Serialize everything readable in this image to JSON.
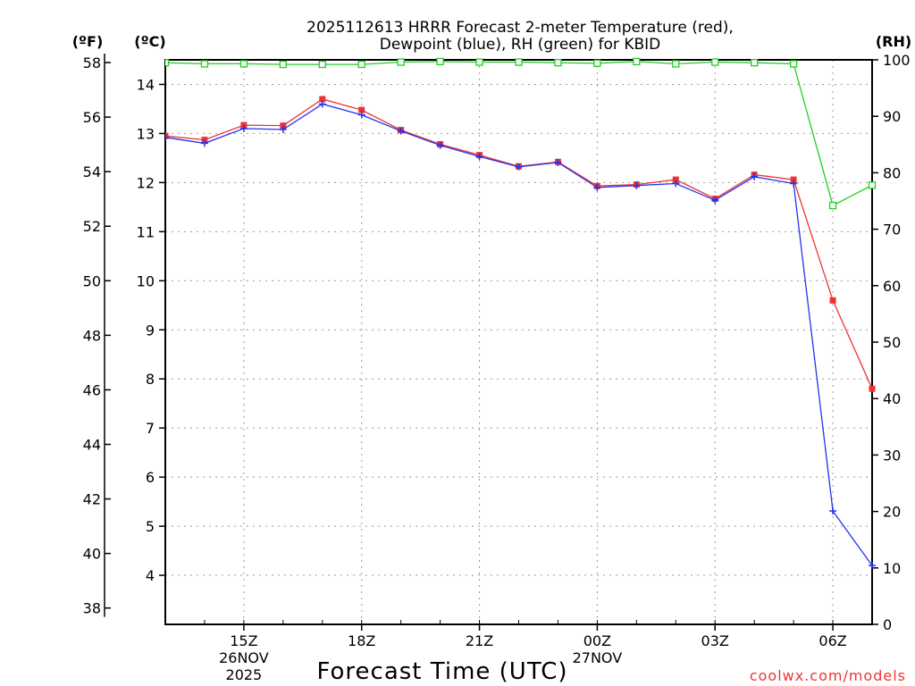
{
  "chart_data": {
    "type": "line",
    "title_line1": "2025112613 HRRR Forecast 2-meter Temperature (red),",
    "title_line2": "Dewpoint (blue), RH (green) for KBID",
    "xlabel": "Forecast Time (UTC)",
    "left_outer_unit": "(ºF)",
    "left_inner_unit": "(ºC)",
    "right_unit": "(RH)",
    "watermark": "coolwx.com/models",
    "fahrenheit_ticks": [
      "58",
      "56",
      "54",
      "52",
      "50",
      "48",
      "46",
      "44",
      "42",
      "40",
      "38"
    ],
    "fahrenheit_tick_values": [
      58,
      56,
      54,
      52,
      50,
      48,
      46,
      44,
      42,
      40,
      38
    ],
    "celsius_ticks": [
      "14",
      "13",
      "12",
      "11",
      "10",
      "9",
      "8",
      "7",
      "6",
      "5",
      "4"
    ],
    "celsius_tick_values": [
      14,
      13,
      12,
      11,
      10,
      9,
      8,
      7,
      6,
      5,
      4
    ],
    "rh_ticks": [
      "100",
      "90",
      "80",
      "70",
      "60",
      "50",
      "40",
      "30",
      "20",
      "10",
      "0"
    ],
    "rh_tick_values": [
      100,
      90,
      80,
      70,
      60,
      50,
      40,
      30,
      20,
      10,
      0
    ],
    "ylim_celsius": [
      3.0,
      14.5
    ],
    "ylim_rh": [
      0,
      100
    ],
    "x_ticks": [
      {
        "hour": 2,
        "label": "15Z",
        "date": "26NOV",
        "year": "2025"
      },
      {
        "hour": 5,
        "label": "18Z"
      },
      {
        "hour": 8,
        "label": "21Z"
      },
      {
        "hour": 11,
        "label": "00Z",
        "date": "27NOV"
      },
      {
        "hour": 14,
        "label": "03Z"
      },
      {
        "hour": 17,
        "label": "06Z"
      }
    ],
    "xlim_hours": [
      0,
      18
    ],
    "x_hours": [
      0,
      1,
      2,
      3,
      4,
      5,
      6,
      7,
      8,
      9,
      10,
      11,
      12,
      13,
      14,
      15,
      16,
      17,
      18
    ],
    "series": [
      {
        "name": "Temperature",
        "color": "#ee3333",
        "marker": "square-filled",
        "values": [
          12.95,
          12.87,
          13.17,
          13.16,
          13.7,
          13.48,
          13.07,
          12.78,
          12.56,
          12.33,
          12.42,
          11.93,
          11.96,
          12.06,
          11.67,
          12.16,
          12.06,
          9.6,
          7.8
        ]
      },
      {
        "name": "Dewpoint",
        "color": "#2233ee",
        "marker": "plus",
        "values": [
          12.92,
          12.8,
          13.1,
          13.08,
          13.6,
          13.38,
          13.05,
          12.76,
          12.53,
          12.32,
          12.41,
          11.9,
          11.94,
          11.98,
          11.64,
          12.12,
          11.98,
          5.31,
          4.2
        ]
      },
      {
        "name": "RH",
        "color": "#22cc22",
        "marker": "square-open",
        "values": [
          99.5,
          99.3,
          99.3,
          99.2,
          99.2,
          99.2,
          99.6,
          99.7,
          99.6,
          99.6,
          99.5,
          99.4,
          99.7,
          99.3,
          99.6,
          99.5,
          99.3,
          74.2,
          77.8
        ]
      }
    ]
  }
}
